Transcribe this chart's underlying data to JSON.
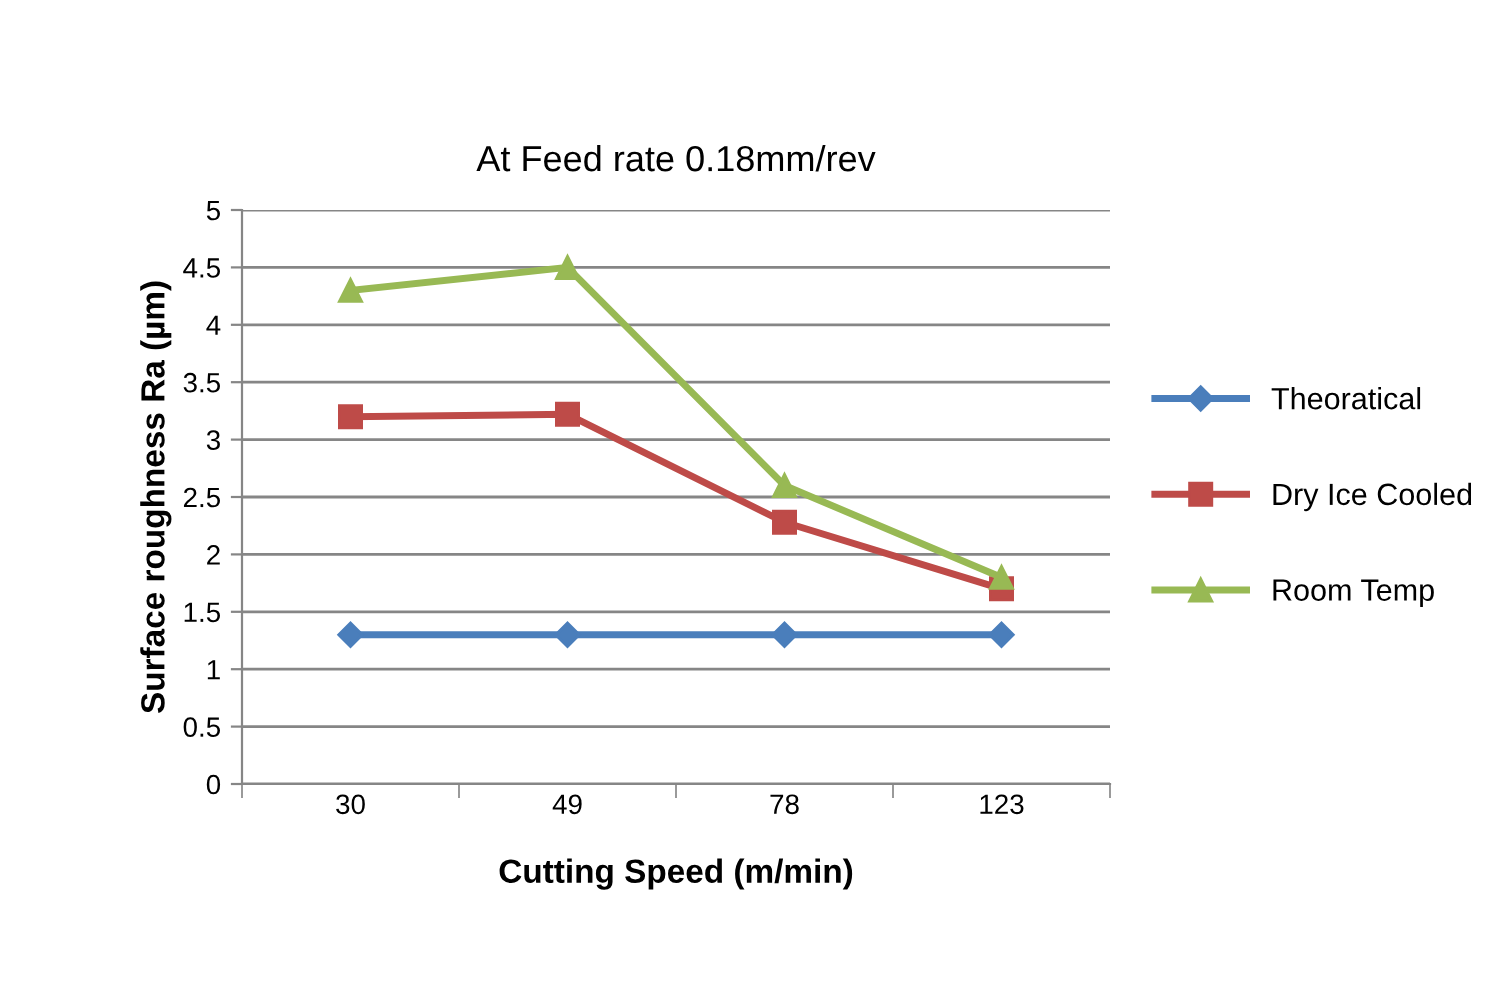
{
  "chart_data": {
    "type": "line",
    "title": "At Feed rate 0.18mm/rev",
    "xlabel": "Cutting Speed (m/min)",
    "ylabel": "Surface roughness Ra (µm)",
    "categories": [
      "30",
      "49",
      "78",
      "123"
    ],
    "series": [
      {
        "name": "Theoratical",
        "color": "#4a7ebb",
        "marker": "diamond",
        "values": [
          1.3,
          1.3,
          1.3,
          1.3
        ]
      },
      {
        "name": "Dry Ice Cooled",
        "color": "#be4b48",
        "marker": "square",
        "values": [
          3.2,
          3.22,
          2.28,
          1.7
        ]
      },
      {
        "name": "Room Temp",
        "color": "#98b954",
        "marker": "triangle",
        "values": [
          4.3,
          4.5,
          2.6,
          1.8
        ]
      }
    ],
    "ylim": [
      0,
      5
    ],
    "yticks": [
      0,
      0.5,
      1,
      1.5,
      2,
      2.5,
      3,
      3.5,
      4,
      4.5,
      5
    ],
    "grid": "y",
    "legend": "right",
    "line_style": "solid"
  }
}
